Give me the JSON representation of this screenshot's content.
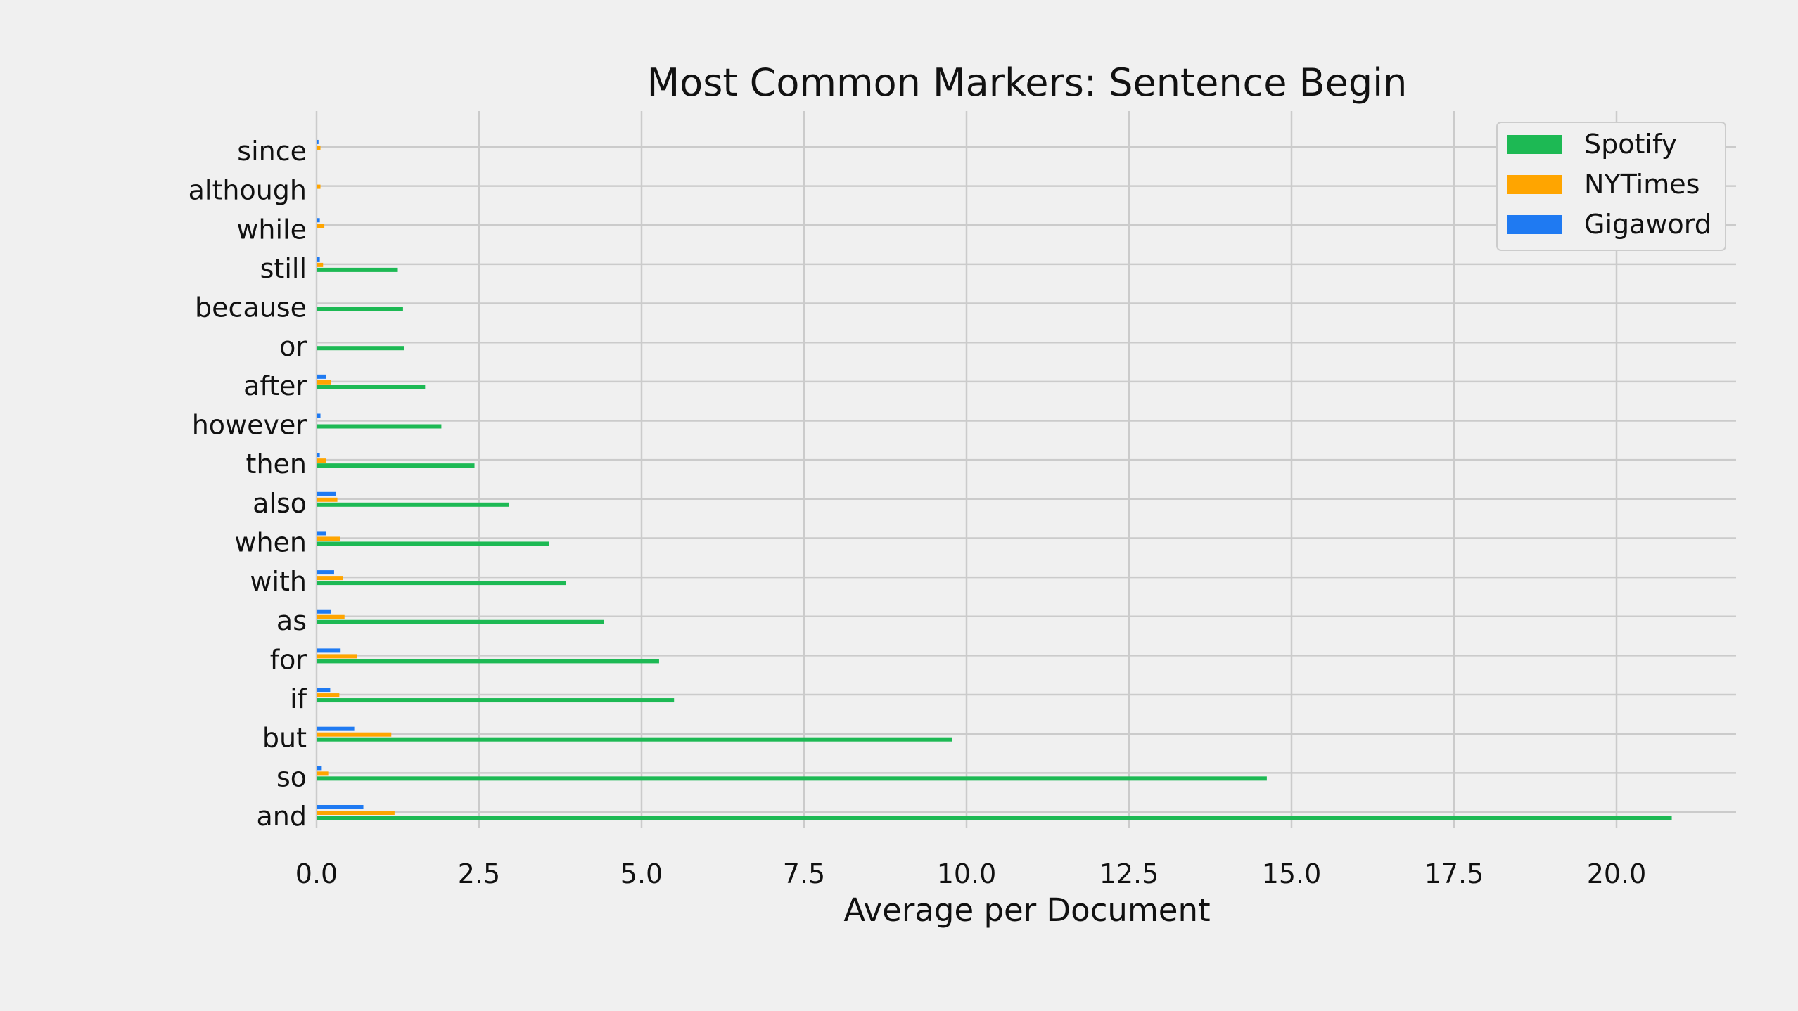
{
  "chart_data": {
    "type": "bar",
    "orientation": "horizontal",
    "title": "Most Common Markers: Sentence Begin",
    "xlabel": "Average per Document",
    "ylabel": "",
    "xlim": [
      0,
      21.8
    ],
    "xticks": [
      0.0,
      2.5,
      5.0,
      7.5,
      10.0,
      12.5,
      15.0,
      17.5,
      20.0
    ],
    "xtick_labels": [
      "0.0",
      "2.5",
      "5.0",
      "7.5",
      "10.0",
      "12.5",
      "15.0",
      "17.5",
      "20.0"
    ],
    "grid": true,
    "legend_position": "top-right",
    "categories": [
      "and",
      "so",
      "but",
      "if",
      "for",
      "as",
      "with",
      "when",
      "also",
      "then",
      "however",
      "after",
      "or",
      "because",
      "still",
      "while",
      "although",
      "since"
    ],
    "series": [
      {
        "name": "Spotify",
        "color": "#1db954",
        "values": [
          20.85,
          14.62,
          9.78,
          5.5,
          5.27,
          4.42,
          3.84,
          3.58,
          2.96,
          2.43,
          1.92,
          1.67,
          1.35,
          1.33,
          1.25,
          0.0,
          0.0,
          0.0
        ]
      },
      {
        "name": "NYTimes",
        "color": "#ffa500",
        "values": [
          1.2,
          0.18,
          1.15,
          0.35,
          0.62,
          0.43,
          0.41,
          0.36,
          0.32,
          0.15,
          0.0,
          0.22,
          0.0,
          0.0,
          0.1,
          0.12,
          0.06,
          0.06
        ]
      },
      {
        "name": "Gigaword",
        "color": "#1f7af2",
        "values": [
          0.72,
          0.08,
          0.58,
          0.21,
          0.37,
          0.22,
          0.27,
          0.15,
          0.3,
          0.05,
          0.06,
          0.15,
          0.0,
          0.0,
          0.05,
          0.05,
          0.0,
          0.03
        ]
      }
    ]
  }
}
